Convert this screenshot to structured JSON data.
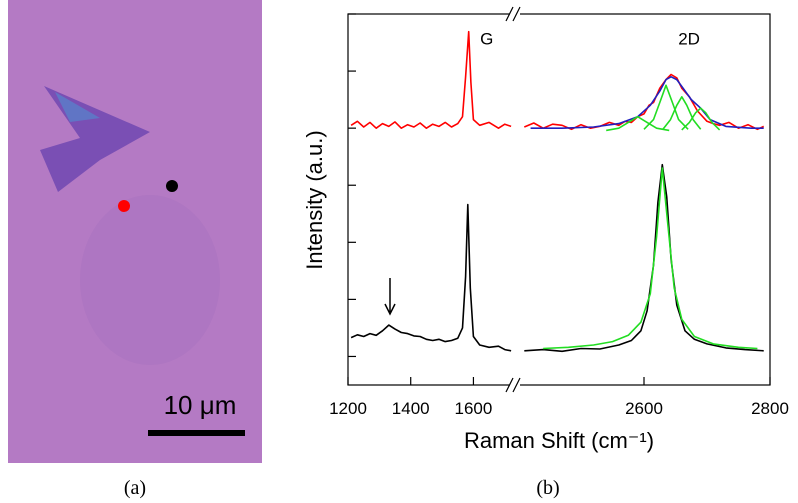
{
  "panel_a": {
    "label": "(a)",
    "scale_bar": "10 μm"
  },
  "chart_data": {
    "type": "line",
    "panel_label": "(b)",
    "x_label": "Raman Shift (cm⁻¹)",
    "y_label": "Intensity (a.u.)",
    "annotations": [
      {
        "text": "G",
        "x": 1585,
        "y": 5.5
      },
      {
        "text": "2D",
        "x": 2643,
        "y": 5.5
      }
    ],
    "x_segments": [
      {
        "xlim": [
          1200,
          1723
        ],
        "xticks": [
          1200,
          1400,
          1600
        ]
      },
      {
        "xlim": [
          2400,
          2800
        ],
        "xticks": [
          2600,
          2800
        ]
      }
    ],
    "ylim": [
      -0.5,
      6
    ],
    "yticks": [
      0,
      1,
      2,
      3,
      4,
      5,
      6
    ],
    "series": [
      {
        "color": "#ff0000",
        "x": [
          1210,
          1230,
          1250,
          1270,
          1290,
          1310,
          1330,
          1350,
          1370,
          1390,
          1410,
          1430,
          1450,
          1470,
          1490,
          1510,
          1530,
          1550,
          1565,
          1575,
          1585,
          1592,
          1600,
          1620,
          1650,
          1680,
          1700,
          1720
        ],
        "values": [
          4.05,
          4.12,
          4.02,
          4.1,
          4.0,
          4.08,
          4.03,
          4.11,
          4.0,
          4.06,
          4.02,
          4.09,
          4.0,
          4.07,
          4.03,
          4.1,
          4.02,
          4.08,
          4.2,
          4.9,
          5.69,
          4.8,
          4.15,
          4.05,
          4.1,
          4.0,
          4.07,
          4.03
        ]
      },
      {
        "color": "#ff0000",
        "x": [
          2410,
          2425,
          2440,
          2455,
          2470,
          2485,
          2500,
          2515,
          2530,
          2545,
          2560,
          2570,
          2580,
          2590,
          2600,
          2608,
          2615,
          2625,
          2635,
          2643,
          2652,
          2660,
          2672,
          2685,
          2700,
          2710,
          2720,
          2735,
          2750,
          2765,
          2780,
          2790
        ],
        "values": [
          4.02,
          4.09,
          4.0,
          4.07,
          4.05,
          3.98,
          4.06,
          4.0,
          4.03,
          4.1,
          4.05,
          4.12,
          4.1,
          4.2,
          4.25,
          4.4,
          4.45,
          4.7,
          4.85,
          4.94,
          4.88,
          4.7,
          4.55,
          4.3,
          4.12,
          4.08,
          4.05,
          4.1,
          4.0,
          4.06,
          3.98,
          4.03
        ]
      },
      {
        "color": "#2020c0",
        "x": [
          2420,
          2470,
          2520,
          2560,
          2590,
          2610,
          2625,
          2635,
          2643,
          2652,
          2662,
          2675,
          2690,
          2705,
          2730,
          2770,
          2790
        ],
        "values": [
          4.0,
          4.0,
          4.02,
          4.08,
          4.2,
          4.4,
          4.65,
          4.85,
          4.9,
          4.85,
          4.7,
          4.5,
          4.35,
          4.15,
          4.03,
          4.0,
          4.0
        ]
      },
      {
        "color": "#22dd22",
        "x": [
          2540,
          2560,
          2575,
          2590,
          2605,
          2620,
          2640
        ],
        "values": [
          3.96,
          4.0,
          4.1,
          4.2,
          4.1,
          4.0,
          3.96
        ]
      },
      {
        "color": "#22dd22",
        "x": [
          2600,
          2615,
          2625,
          2635,
          2645,
          2655,
          2670
        ],
        "values": [
          3.98,
          4.15,
          4.45,
          4.75,
          4.45,
          4.15,
          3.98
        ]
      },
      {
        "color": "#22dd22",
        "x": [
          2630,
          2642,
          2652,
          2660,
          2668,
          2678,
          2690
        ],
        "values": [
          3.98,
          4.15,
          4.4,
          4.55,
          4.4,
          4.15,
          3.98
        ]
      },
      {
        "color": "#22dd22",
        "x": [
          2660,
          2672,
          2682,
          2690,
          2698,
          2708,
          2720
        ],
        "values": [
          3.97,
          4.1,
          4.27,
          4.35,
          4.27,
          4.1,
          3.97
        ]
      },
      {
        "color": "#000000",
        "x": [
          1210,
          1230,
          1250,
          1270,
          1290,
          1310,
          1330,
          1350,
          1370,
          1390,
          1410,
          1430,
          1450,
          1470,
          1490,
          1510,
          1530,
          1550,
          1565,
          1575,
          1582,
          1590,
          1600,
          1620,
          1650,
          1680,
          1700,
          1720
        ],
        "values": [
          0.33,
          0.38,
          0.35,
          0.4,
          0.37,
          0.45,
          0.55,
          0.48,
          0.42,
          0.4,
          0.36,
          0.35,
          0.3,
          0.28,
          0.3,
          0.26,
          0.28,
          0.32,
          0.5,
          1.4,
          2.66,
          1.2,
          0.35,
          0.2,
          0.16,
          0.18,
          0.12,
          0.1
        ]
      },
      {
        "color": "#000000",
        "x": [
          2410,
          2440,
          2470,
          2500,
          2530,
          2560,
          2580,
          2595,
          2605,
          2615,
          2622,
          2629,
          2636,
          2643,
          2652,
          2665,
          2680,
          2700,
          2730,
          2760,
          2790
        ],
        "values": [
          0.1,
          0.12,
          0.09,
          0.14,
          0.13,
          0.2,
          0.28,
          0.45,
          0.8,
          1.6,
          2.7,
          3.36,
          2.8,
          1.7,
          0.9,
          0.45,
          0.3,
          0.22,
          0.15,
          0.12,
          0.1
        ]
      },
      {
        "color": "#22dd22",
        "x": [
          2440,
          2480,
          2520,
          2550,
          2575,
          2595,
          2610,
          2620,
          2629,
          2638,
          2648,
          2660,
          2680,
          2710,
          2750,
          2780
        ],
        "values": [
          0.14,
          0.16,
          0.2,
          0.26,
          0.37,
          0.6,
          1.1,
          2.1,
          3.3,
          2.3,
          1.2,
          0.65,
          0.35,
          0.22,
          0.16,
          0.14
        ]
      }
    ]
  }
}
